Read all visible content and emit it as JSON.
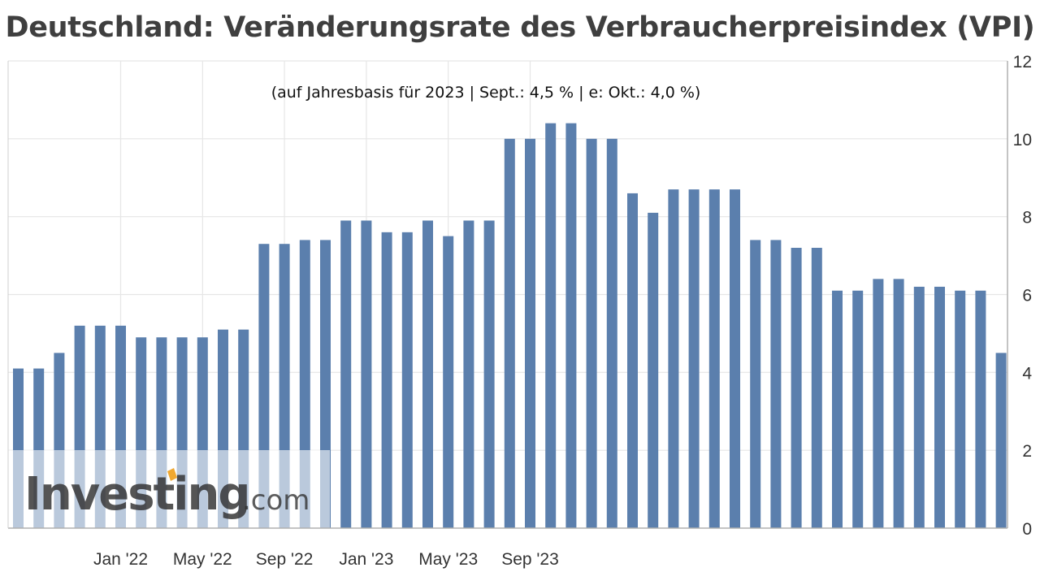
{
  "chart_data": {
    "type": "bar",
    "title": "Deutschland: Veränderungsrate des Verbraucherpreisindex (VPI)",
    "subtitle": "(auf Jahresbasis für 2023 | Sept.: 4,5 % | e: Okt.: 4,0 %)",
    "x_tick_labels": [
      "Jan '22",
      "May '22",
      "Sep '22",
      "Jan '23",
      "May '23",
      "Sep '23"
    ],
    "y_tick_labels": [
      "0",
      "2",
      "4",
      "6",
      "8",
      "10",
      "12"
    ],
    "ylim": [
      0,
      12
    ],
    "y_axis_position": "right",
    "grid": true,
    "values": [
      4.1,
      4.1,
      4.5,
      5.2,
      5.2,
      5.2,
      4.9,
      4.9,
      4.9,
      4.9,
      5.1,
      5.1,
      7.3,
      7.3,
      7.4,
      7.4,
      7.9,
      7.9,
      7.6,
      7.6,
      7.9,
      7.5,
      7.9,
      7.9,
      10.0,
      10.0,
      10.4,
      10.4,
      10.0,
      10.0,
      8.6,
      8.1,
      8.7,
      8.7,
      8.7,
      8.7,
      7.4,
      7.4,
      7.2,
      7.2,
      6.1,
      6.1,
      6.4,
      6.4,
      6.2,
      6.2,
      6.1,
      6.1,
      4.5
    ],
    "bar_color": "#5b7fad",
    "gridline_color": "#e6e6e6",
    "axis_color": "#b0b0b0"
  },
  "watermark": {
    "brand": "Investing",
    "suffix": ".com",
    "accent_color": "#f0a830"
  }
}
